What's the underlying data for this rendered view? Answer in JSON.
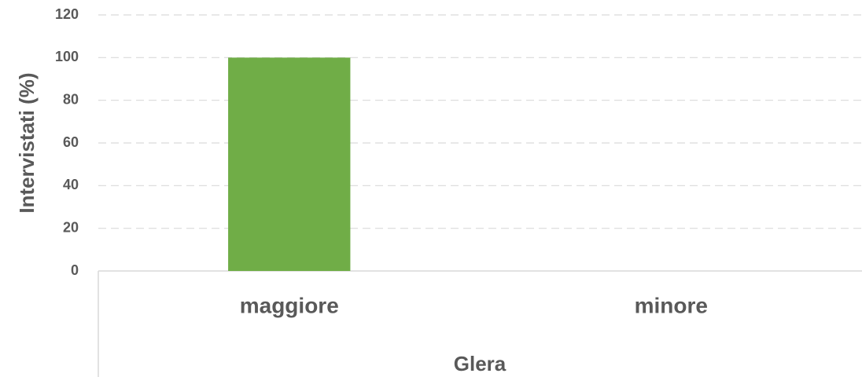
{
  "chart_data": {
    "type": "bar",
    "y_label": "Intervistati (%)",
    "x_group_label": "Glera",
    "categories": [
      "maggiore",
      "minore"
    ],
    "values": [
      100,
      0
    ],
    "color": "#70ad47",
    "ylim": [
      0,
      120
    ],
    "yticks": [
      0,
      20,
      40,
      60,
      80,
      100,
      120
    ],
    "grid": true
  }
}
